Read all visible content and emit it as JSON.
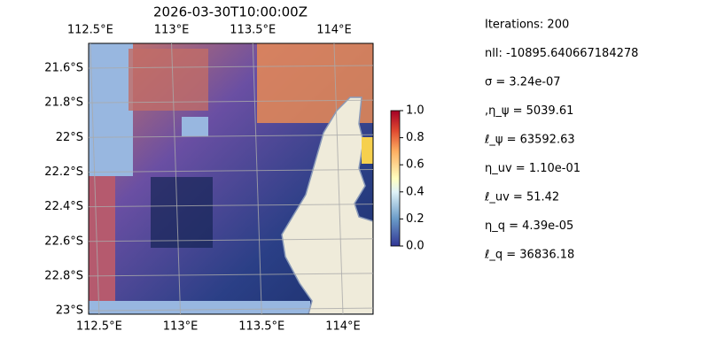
{
  "title": "2026-03-30T10:00:00Z",
  "map": {
    "lonlim": [
      112.49,
      114.24
    ],
    "latlim": [
      -23.02,
      -21.457
    ],
    "lon_ticks": [
      {
        "value": 112.5,
        "label": "112.5°E"
      },
      {
        "value": 113,
        "label": "113°E"
      },
      {
        "value": 113.5,
        "label": "113.5°E"
      },
      {
        "value": 114,
        "label": "114°E"
      }
    ],
    "lat_ticks": [
      {
        "value": -21.6,
        "label": "21.6°S"
      },
      {
        "value": -21.8,
        "label": "21.8°S"
      },
      {
        "value": -22,
        "label": "22°S"
      },
      {
        "value": -22.2,
        "label": "22.2°S"
      },
      {
        "value": -22.4,
        "label": "22.4°S"
      },
      {
        "value": -22.6,
        "label": "22.6°S"
      },
      {
        "value": -22.8,
        "label": "22.8°S"
      },
      {
        "value": -23,
        "label": "23°S"
      }
    ],
    "grid": true
  },
  "colorbar": {
    "lim": [
      0,
      1
    ],
    "ticks": [
      {
        "value": 0,
        "label": "0.0"
      },
      {
        "value": 0.2,
        "label": "0.2"
      },
      {
        "value": 0.4,
        "label": "0.4"
      },
      {
        "value": 0.6,
        "label": "0.6"
      },
      {
        "value": 0.8,
        "label": "0.8"
      },
      {
        "value": 1,
        "label": "1.0"
      }
    ]
  },
  "stats": [
    "Iterations: 200",
    "nll: -10895.640667184278",
    "σ = 3.24e-07",
    ",η_ψ = 5039.61",
    "ℓ_ψ = 63592.63",
    "η_uv = 1.10e-01",
    "ℓ_uv = 51.42",
    "η_q = 4.39e-05",
    "ℓ_q = 36836.18"
  ]
}
